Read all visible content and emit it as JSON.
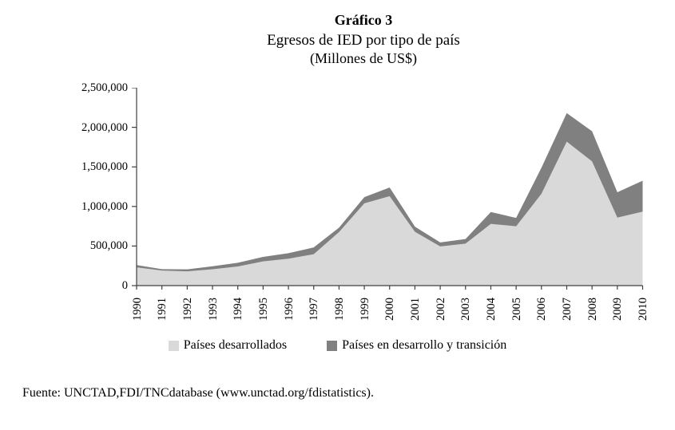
{
  "title": {
    "main": "Gráfico 3",
    "subtitle": "Egresos de IED por tipo de país",
    "units": "(Millones de US$)"
  },
  "chart_data": {
    "type": "area",
    "stacked": true,
    "title": "Egresos de IED por tipo de país (Millones de US$)",
    "x": [
      "1990",
      "1991",
      "1992",
      "1993",
      "1994",
      "1995",
      "1996",
      "1997",
      "1998",
      "1999",
      "2000",
      "2001",
      "2002",
      "2003",
      "2004",
      "2005",
      "2006",
      "2007",
      "2008",
      "2009",
      "2010"
    ],
    "series": [
      {
        "name": "Países desarrollados",
        "color": "#d9d9d9",
        "values": [
          230000,
          190000,
          180000,
          207000,
          242000,
          306000,
          340000,
          397000,
          677000,
          1040000,
          1130000,
          680000,
          495000,
          530000,
          780000,
          750000,
          1160000,
          1820000,
          1570000,
          860000,
          935000
        ]
      },
      {
        "name": "Países en desarrollo y transición",
        "color": "#808080",
        "values": [
          30000,
          18000,
          25000,
          38000,
          46000,
          57000,
          70000,
          85000,
          55000,
          78000,
          110000,
          65000,
          50000,
          58000,
          150000,
          105000,
          330000,
          360000,
          380000,
          320000,
          390000
        ]
      }
    ],
    "ylim": [
      0,
      2500000
    ],
    "ytick_step": 500000,
    "ytick_labels": [
      "0",
      "500,000",
      "1,000,000",
      "1,500,000",
      "2,000,000",
      "2,500,000"
    ],
    "xlabel": "",
    "ylabel": "",
    "grid": false,
    "legend_position": "bottom",
    "axis_color": "#404040"
  },
  "legend": {
    "items": [
      {
        "label": "Países desarrollados",
        "color": "#d9d9d9"
      },
      {
        "label": "Países en desarrollo y transición",
        "color": "#808080"
      }
    ]
  },
  "footer": {
    "source": "Fuente: UNCTAD,FDI/TNCdatabase (www.unctad.org/fdistatistics)."
  }
}
